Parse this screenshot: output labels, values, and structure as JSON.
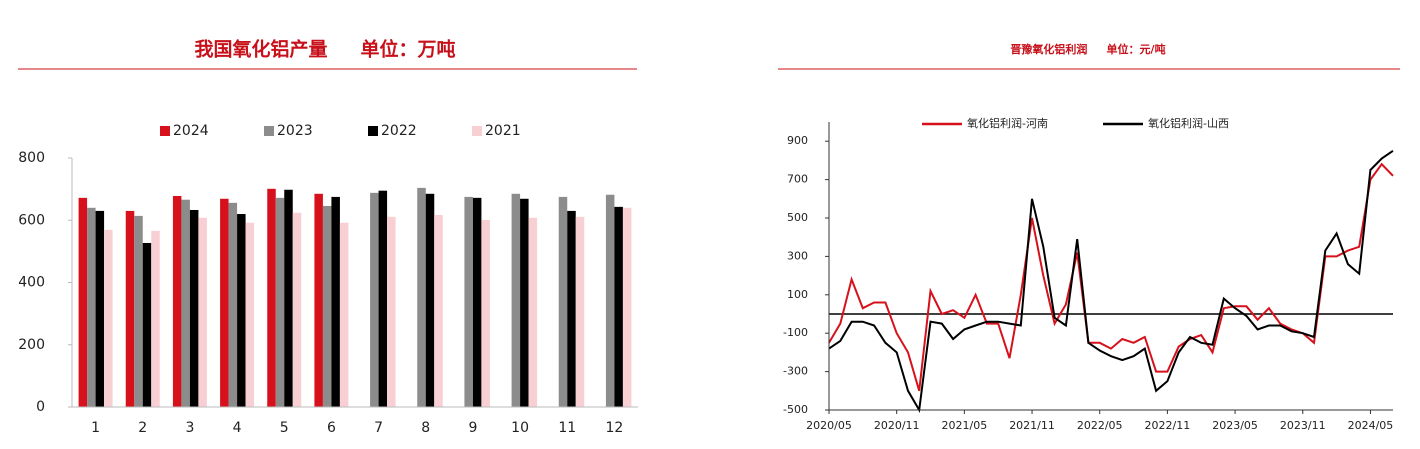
{
  "chart_data": [
    {
      "type": "bar",
      "title": "我国氧化铝产量     单位：万吨",
      "categories": [
        "1",
        "2",
        "3",
        "4",
        "5",
        "6",
        "7",
        "8",
        "9",
        "10",
        "11",
        "12"
      ],
      "series": [
        {
          "name": "2024",
          "color": "#d7111b",
          "values": [
            672,
            630,
            678,
            669,
            701,
            685,
            null,
            null,
            null,
            null,
            null,
            null
          ]
        },
        {
          "name": "2023",
          "color": "#8c8c8c",
          "values": [
            640,
            614,
            666,
            656,
            672,
            646,
            688,
            704,
            675,
            685,
            675,
            682
          ]
        },
        {
          "name": "2022",
          "color": "#000000",
          "values": [
            630,
            527,
            633,
            620,
            698,
            675,
            695,
            685,
            672,
            669,
            630,
            643
          ]
        },
        {
          "name": "2021",
          "color": "#f8d0d4",
          "values": [
            569,
            566,
            608,
            592,
            624,
            592,
            611,
            617,
            601,
            608,
            611,
            640
          ]
        }
      ],
      "ylim": [
        0,
        800
      ],
      "yticks": [
        0,
        200,
        400,
        600,
        800
      ],
      "grid": false,
      "legend": "top"
    },
    {
      "type": "line",
      "title": "晋豫氧化铝利润     单位：元/吨",
      "categories": [
        "2020/05",
        null,
        null,
        null,
        null,
        null,
        "2020/11",
        null,
        null,
        null,
        null,
        null,
        "2021/05",
        null,
        null,
        null,
        null,
        null,
        "2021/11",
        null,
        null,
        null,
        null,
        null,
        "2022/05",
        null,
        null,
        null,
        null,
        null,
        "2022/11",
        null,
        null,
        null,
        null,
        null,
        "2023/05",
        null,
        null,
        null,
        null,
        null,
        "2023/11",
        null,
        null,
        null,
        null,
        null,
        "2024/05",
        null,
        null
      ],
      "series": [
        {
          "name": "氧化铝利润-河南",
          "color": "#d7111b",
          "values": [
            -150,
            -50,
            180,
            30,
            60,
            60,
            -100,
            -200,
            -400,
            120,
            0,
            20,
            -20,
            100,
            -50,
            -50,
            -230,
            100,
            500,
            200,
            -50,
            50,
            320,
            -150,
            -150,
            -180,
            -130,
            -150,
            -120,
            -300,
            -300,
            -170,
            -130,
            -110,
            -200,
            30,
            40,
            40,
            -30,
            30,
            -50,
            -80,
            -100,
            -150,
            300,
            300,
            330,
            350,
            700,
            780,
            720
          ]
        },
        {
          "name": "氧化铝利润-山西",
          "color": "#000000",
          "values": [
            -180,
            -140,
            -40,
            -40,
            -60,
            -150,
            -200,
            -400,
            -500,
            -40,
            -50,
            -130,
            -80,
            -60,
            -40,
            -40,
            -50,
            -60,
            600,
            350,
            -20,
            -60,
            390,
            -150,
            -190,
            -220,
            -240,
            -220,
            -180,
            -400,
            -350,
            -200,
            -120,
            -150,
            -160,
            80,
            30,
            -10,
            -80,
            -60,
            -60,
            -90,
            -100,
            -120,
            330,
            420,
            260,
            210,
            750,
            810,
            850
          ]
        }
      ],
      "hline": 0,
      "ylim": [
        -500,
        1000
      ],
      "yticks": [
        -500,
        -300,
        -100,
        100,
        300,
        500,
        700,
        900
      ],
      "grid": false,
      "legend": "top"
    }
  ]
}
